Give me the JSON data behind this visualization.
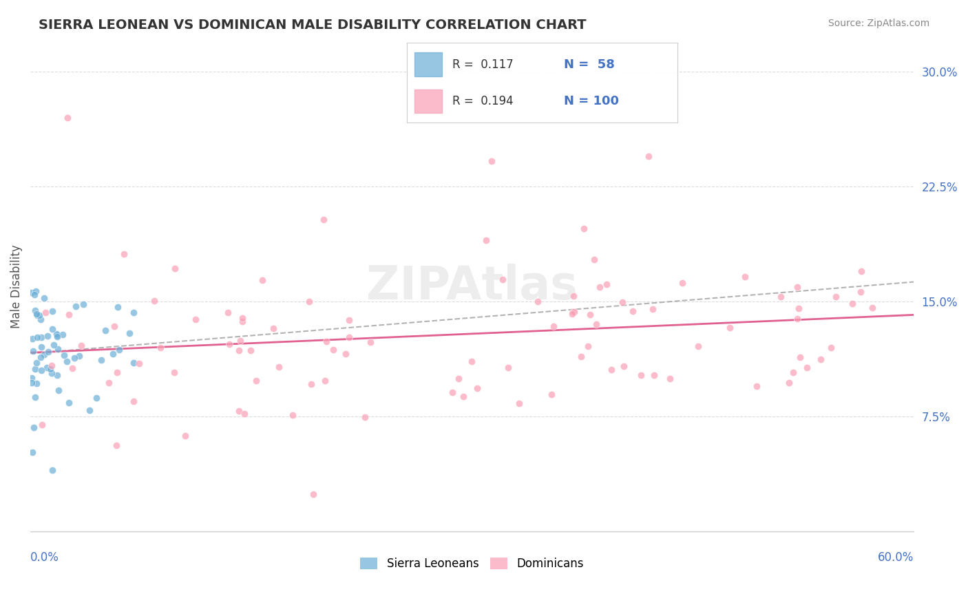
{
  "title": "SIERRA LEONEAN VS DOMINICAN MALE DISABILITY CORRELATION CHART",
  "source": "Source: ZipAtlas.com",
  "ylabel": "Male Disability",
  "xmin": 0.0,
  "xmax": 0.6,
  "ymin": 0.0,
  "ymax": 0.32,
  "yticks": [
    0.075,
    0.15,
    0.225,
    0.3
  ],
  "ytick_labels": [
    "7.5%",
    "15.0%",
    "22.5%",
    "30.0%"
  ],
  "blue_scatter_color": "#6baed6",
  "pink_scatter_color": "#fa9fb5",
  "trend_blue_color": "#aaaaaa",
  "trend_pink_color": "#e06090",
  "background_color": "#ffffff"
}
